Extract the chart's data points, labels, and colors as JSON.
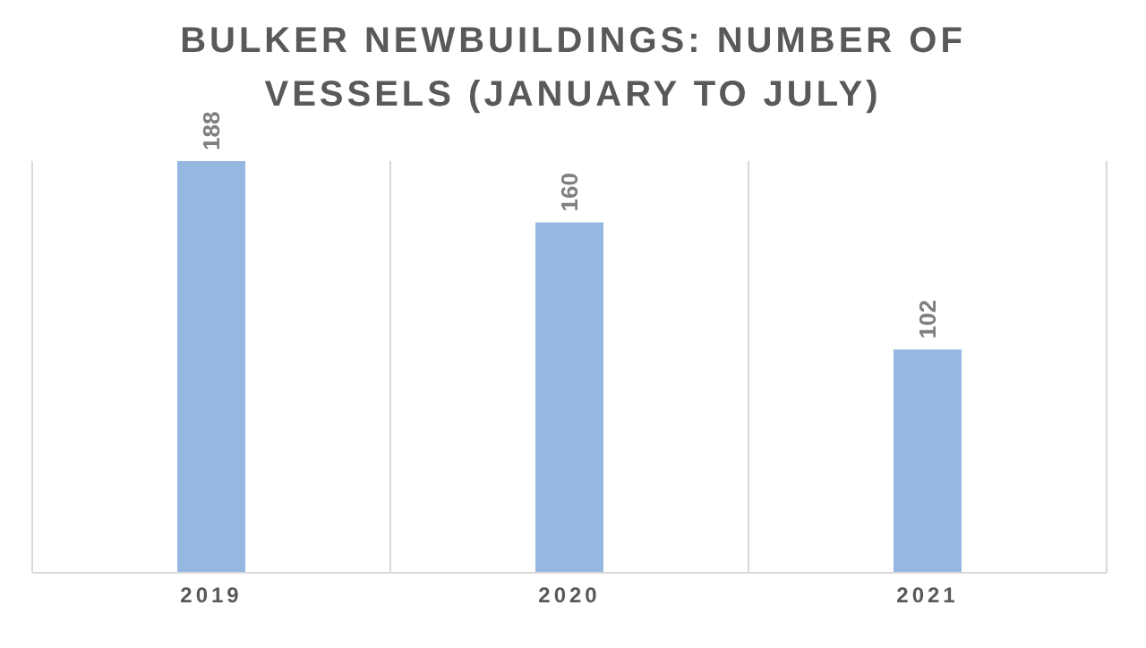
{
  "chart_data": {
    "type": "bar",
    "title": "BULKER NEWBUILDINGS: NUMBER OF VESSELS (JANUARY TO JULY)",
    "categories": [
      "2019",
      "2020",
      "2021"
    ],
    "values": [
      188,
      160,
      102
    ],
    "color": "#95b7e0",
    "data_labels": true,
    "grid": "x"
  }
}
